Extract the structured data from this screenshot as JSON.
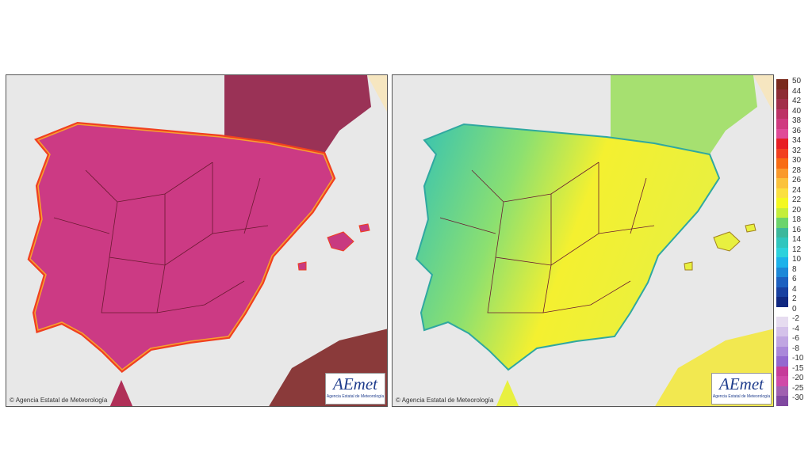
{
  "maps": [
    {
      "credit": "Agencia Estatal de Meteorología",
      "logo": "AEmet",
      "logo_caption": "Agencia Estatal de Meteorología"
    },
    {
      "credit": "Agencia Estatal de Meteorología",
      "logo": "AEmet",
      "logo_caption": "Agencia Estatal de Meteorología"
    }
  ],
  "legend": [
    {
      "label": 50,
      "color": "#7a2a1c"
    },
    {
      "label": 44,
      "color": "#8e2c34"
    },
    {
      "label": 42,
      "color": "#a22f4a"
    },
    {
      "label": 40,
      "color": "#bd3266"
    },
    {
      "label": 38,
      "color": "#d03a80"
    },
    {
      "label": 36,
      "color": "#e04a98"
    },
    {
      "label": 34,
      "color": "#e81e24"
    },
    {
      "label": 32,
      "color": "#f24020"
    },
    {
      "label": 30,
      "color": "#f86c14"
    },
    {
      "label": 28,
      "color": "#fa9a2c"
    },
    {
      "label": 26,
      "color": "#fbc23c"
    },
    {
      "label": 24,
      "color": "#fbe040"
    },
    {
      "label": 22,
      "color": "#f4f820"
    },
    {
      "label": 20,
      "color": "#c4ee3c"
    },
    {
      "label": 18,
      "color": "#6cd46c"
    },
    {
      "label": 16,
      "color": "#3cb89c"
    },
    {
      "label": 14,
      "color": "#30c6be"
    },
    {
      "label": 12,
      "color": "#2cd2dc"
    },
    {
      "label": 10,
      "color": "#1cb2ea"
    },
    {
      "label": 8,
      "color": "#1c88d8"
    },
    {
      "label": 6,
      "color": "#1c60c0"
    },
    {
      "label": 4,
      "color": "#1840a0"
    },
    {
      "label": 2,
      "color": "#102880"
    },
    {
      "label": 0,
      "color": "#ffffff"
    },
    {
      "label": -2,
      "color": "#e6dcf0"
    },
    {
      "label": -4,
      "color": "#d4c2ea"
    },
    {
      "label": -6,
      "color": "#c0a6e2"
    },
    {
      "label": -8,
      "color": "#aa88da"
    },
    {
      "label": -10,
      "color": "#9468d0"
    },
    {
      "label": -15,
      "color": "#c63c9a"
    },
    {
      "label": -20,
      "color": "#d04aa8"
    },
    {
      "label": -25,
      "color": "#a060b0"
    },
    {
      "label": -30,
      "color": "#8048a0"
    }
  ]
}
